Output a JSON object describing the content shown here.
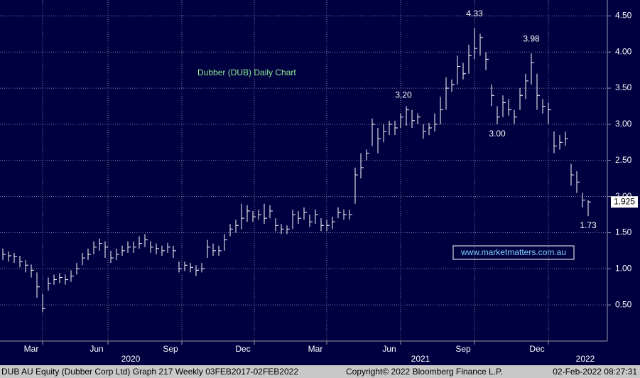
{
  "chart_data": {
    "type": "ohlc",
    "title": "Dubber (DUB) Daily Chart",
    "watermark": "www.marketmatters.com.au",
    "last_price": {
      "value": 1.925,
      "label": "1.925"
    },
    "color": "#ffffff",
    "grid": true,
    "ylim": [
      0,
      4.72
    ],
    "yticks": [
      {
        "value": 0.5,
        "label": "0.50"
      },
      {
        "value": 1,
        "label": "1.00"
      },
      {
        "value": 1.5,
        "label": "1.50"
      },
      {
        "value": 2,
        "label": "2.00"
      },
      {
        "value": 2.5,
        "label": "2.50"
      },
      {
        "value": 3,
        "label": "3.00"
      },
      {
        "value": 3.5,
        "label": "3.50"
      },
      {
        "value": 4,
        "label": "4.00"
      },
      {
        "value": 4.5,
        "label": "4.50"
      }
    ],
    "xticks": [
      {
        "value": 7,
        "label": "Mar"
      },
      {
        "value": 18.5,
        "label": "Jun"
      },
      {
        "value": 31.5,
        "label": "Sep"
      },
      {
        "value": 44.25,
        "label": "Dec"
      },
      {
        "value": 57,
        "label": "Mar"
      },
      {
        "value": 70,
        "label": "Jun"
      },
      {
        "value": 83,
        "label": "Sep"
      },
      {
        "value": 96,
        "label": "Dec"
      }
    ],
    "xgroups": [
      {
        "value": 22.5,
        "label": "2020"
      },
      {
        "value": 73.5,
        "label": "2021"
      },
      {
        "value": 102.5,
        "label": "2022"
      }
    ],
    "annotations": [
      {
        "text": "4.33",
        "x": 83,
        "y": 4.33
      },
      {
        "text": "3.98",
        "x": 93,
        "y": 3.98
      },
      {
        "text": "3.20",
        "x": 70.5,
        "y": 3.2
      },
      {
        "text": "3.00",
        "x": 87,
        "y": 3.0
      },
      {
        "text": "1.73",
        "x": 103,
        "y": 1.73
      }
    ],
    "series": {
      "close": [
        1.2,
        1.18,
        1.17,
        1.1,
        1.05,
        0.98,
        0.75,
        0.45,
        0.8,
        0.85,
        0.88,
        0.85,
        0.9,
        1.0,
        1.15,
        1.2,
        1.3,
        1.35,
        1.3,
        1.15,
        1.2,
        1.25,
        1.3,
        1.3,
        1.35,
        1.4,
        1.3,
        1.28,
        1.25,
        1.3,
        1.25,
        1.0,
        1.05,
        1.02,
        0.98,
        1.0,
        1.3,
        1.25,
        1.25,
        1.4,
        1.55,
        1.6,
        1.7,
        1.8,
        1.72,
        1.75,
        1.7,
        1.8,
        1.6,
        1.55,
        1.55,
        1.75,
        1.7,
        1.78,
        1.65,
        1.75,
        1.6,
        1.6,
        1.65,
        1.78,
        1.75,
        1.75,
        2.3,
        2.4,
        2.6,
        3.0,
        2.8,
        2.9,
        3.0,
        2.95,
        3.1,
        3.2,
        3.05,
        3.1,
        2.9,
        2.95,
        3.0,
        3.2,
        3.5,
        3.55,
        3.8,
        3.7,
        3.95,
        4.05,
        4.2,
        3.9,
        3.4,
        3.1,
        3.3,
        3.2,
        3.1,
        3.4,
        3.6,
        3.85,
        3.4,
        3.25,
        3.2,
        2.7,
        2.75,
        2.8,
        2.3,
        2.2,
        1.95,
        1.925
      ],
      "high": [
        1.28,
        1.24,
        1.22,
        1.18,
        1.12,
        1.06,
        0.95,
        0.65,
        0.88,
        0.92,
        0.94,
        0.92,
        0.98,
        1.08,
        1.22,
        1.28,
        1.38,
        1.42,
        1.38,
        1.25,
        1.28,
        1.32,
        1.38,
        1.38,
        1.45,
        1.48,
        1.38,
        1.35,
        1.32,
        1.36,
        1.32,
        1.1,
        1.1,
        1.08,
        1.05,
        1.08,
        1.4,
        1.35,
        1.32,
        1.48,
        1.62,
        1.68,
        1.9,
        1.88,
        1.8,
        1.82,
        1.9,
        1.88,
        1.7,
        1.62,
        1.6,
        1.82,
        1.8,
        1.85,
        1.75,
        1.82,
        1.7,
        1.68,
        1.72,
        1.85,
        1.82,
        1.82,
        2.4,
        2.6,
        2.65,
        3.08,
        2.95,
        3.0,
        3.05,
        3.05,
        3.15,
        3.25,
        3.2,
        3.15,
        3.0,
        3.02,
        3.15,
        3.38,
        3.65,
        3.62,
        3.95,
        3.85,
        4.1,
        4.33,
        4.25,
        4.0,
        3.55,
        3.25,
        3.4,
        3.35,
        3.2,
        3.5,
        3.7,
        3.98,
        3.7,
        3.35,
        3.3,
        2.9,
        2.85,
        2.9,
        2.45,
        2.35,
        2.05,
        1.95
      ],
      "low": [
        1.12,
        1.1,
        1.08,
        1.02,
        0.95,
        0.88,
        0.6,
        0.4,
        0.7,
        0.78,
        0.8,
        0.78,
        0.82,
        0.92,
        1.05,
        1.12,
        1.2,
        1.25,
        1.15,
        1.08,
        1.12,
        1.18,
        1.22,
        1.22,
        1.28,
        1.3,
        1.22,
        1.2,
        1.18,
        1.22,
        1.15,
        0.95,
        0.97,
        0.95,
        0.9,
        0.95,
        1.15,
        1.18,
        1.18,
        1.25,
        1.45,
        1.5,
        1.55,
        1.65,
        1.65,
        1.68,
        1.62,
        1.7,
        1.52,
        1.48,
        1.48,
        1.55,
        1.62,
        1.68,
        1.58,
        1.62,
        1.52,
        1.52,
        1.55,
        1.7,
        1.68,
        1.68,
        1.9,
        2.25,
        2.5,
        2.7,
        2.6,
        2.75,
        2.85,
        2.85,
        2.95,
        2.98,
        2.95,
        3.0,
        2.8,
        2.85,
        2.9,
        3.0,
        3.2,
        3.45,
        3.55,
        3.62,
        3.7,
        3.9,
        3.95,
        3.75,
        3.25,
        3.0,
        3.1,
        3.12,
        3.0,
        3.2,
        3.35,
        3.55,
        3.2,
        3.15,
        3.0,
        2.6,
        2.65,
        2.7,
        2.15,
        2.05,
        1.85,
        1.73
      ]
    }
  },
  "footer": {
    "left": "DUB AU Equity (Dubber Corp Ltd) Graph 217  Weekly 03FEB2017-02FEB2022",
    "center": "Copyright© 2022 Bloomberg Finance L.P.",
    "right": "02-Feb-2022 08:27:31"
  }
}
